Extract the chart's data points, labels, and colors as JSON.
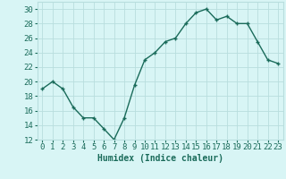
{
  "x": [
    0,
    1,
    2,
    3,
    4,
    5,
    6,
    7,
    8,
    9,
    10,
    11,
    12,
    13,
    14,
    15,
    16,
    17,
    18,
    19,
    20,
    21,
    22,
    23
  ],
  "y": [
    19,
    20,
    19,
    16.5,
    15,
    15,
    13.5,
    12,
    15,
    19.5,
    23,
    24,
    25.5,
    26,
    28,
    29.5,
    30,
    28.5,
    29,
    28,
    28,
    25.5,
    23,
    22.5
  ],
  "xlabel": "Humidex (Indice chaleur)",
  "ylim": [
    12,
    31
  ],
  "xlim": [
    -0.5,
    23.5
  ],
  "yticks": [
    12,
    14,
    16,
    18,
    20,
    22,
    24,
    26,
    28,
    30
  ],
  "xtick_labels": [
    "0",
    "1",
    "2",
    "3",
    "4",
    "5",
    "6",
    "7",
    "8",
    "9",
    "10",
    "11",
    "12",
    "13",
    "14",
    "15",
    "16",
    "17",
    "18",
    "19",
    "20",
    "21",
    "22",
    "23"
  ],
  "line_color": "#1a6b5a",
  "marker": "+",
  "bg_color": "#d8f5f5",
  "grid_color": "#b8dede",
  "label_color": "#1a6b5a",
  "tick_color": "#1a6b5a",
  "axis_fontsize": 7,
  "tick_fontsize": 6.5,
  "linewidth": 1.0,
  "markersize": 3.5
}
